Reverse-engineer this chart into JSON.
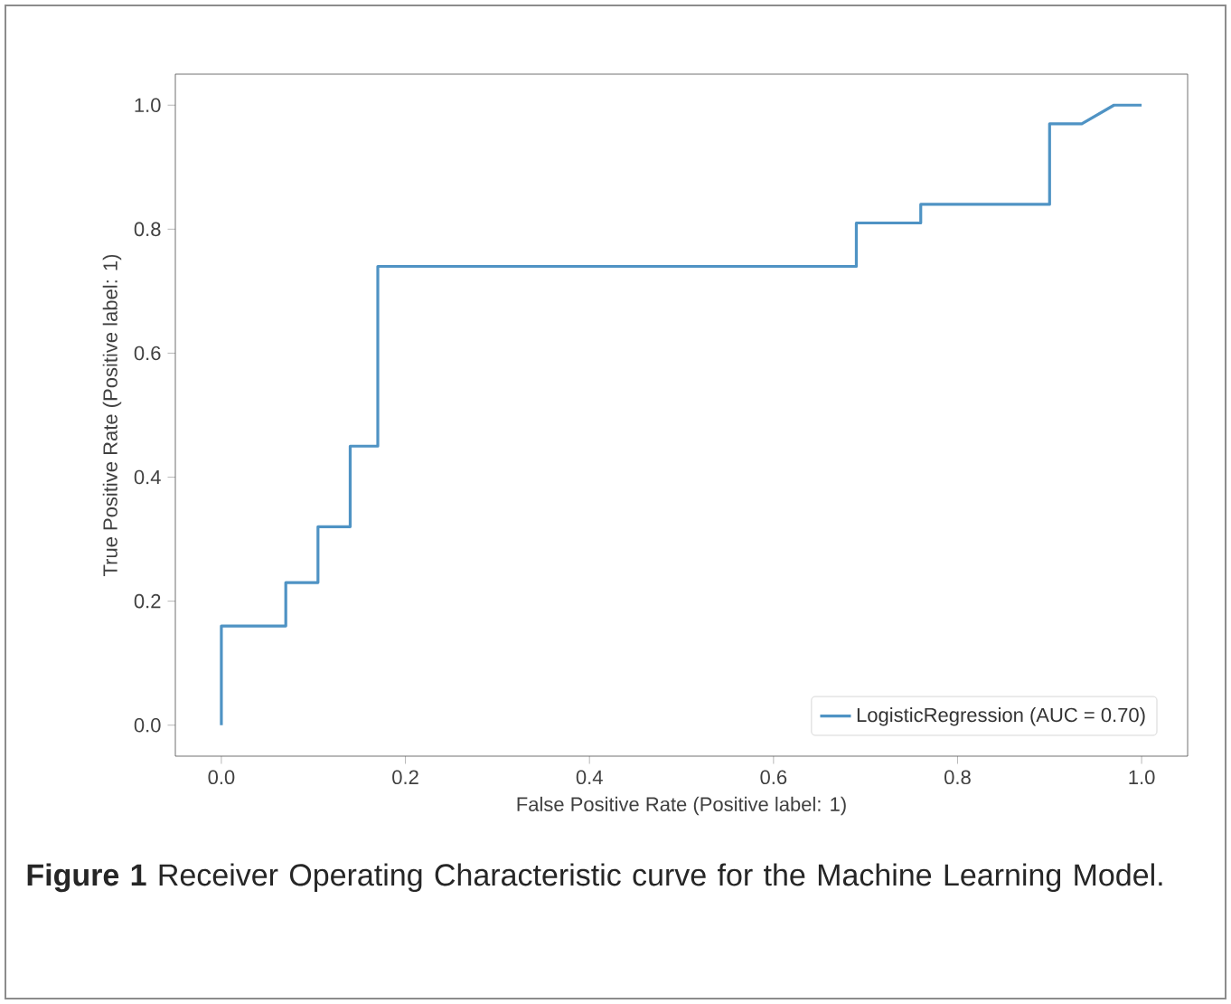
{
  "chart_data": {
    "type": "line",
    "xlabel": "False Positive Rate (Positive label: 1)",
    "ylabel": "True Positive Rate (Positive label: 1)",
    "x": [
      0,
      0,
      0.07,
      0.07,
      0.105,
      0.105,
      0.14,
      0.14,
      0.17,
      0.17,
      0.69,
      0.69,
      0.76,
      0.76,
      0.9,
      0.9,
      0.935,
      0.97,
      1.0
    ],
    "series": [
      {
        "name": "LogisticRegression (AUC = 0.70)",
        "color": "#4f93c4",
        "values": [
          0,
          0.16,
          0.16,
          0.23,
          0.23,
          0.32,
          0.32,
          0.45,
          0.45,
          0.74,
          0.74,
          0.81,
          0.81,
          0.84,
          0.84,
          0.97,
          0.97,
          1.0,
          1.0
        ]
      }
    ],
    "xlim": [
      -0.05,
      1.05
    ],
    "ylim": [
      -0.05,
      1.05
    ],
    "xticks": [
      {
        "value": 0,
        "label": "0.0"
      },
      0.2,
      0.4,
      0.6,
      0.8,
      {
        "value": 1,
        "label": "1.0"
      }
    ],
    "yticks": [
      {
        "value": 0,
        "label": "0.0"
      },
      0.2,
      0.4,
      0.6,
      0.8,
      {
        "value": 1,
        "label": "1.0"
      }
    ],
    "legend": "bottom right",
    "line_style": "solid",
    "annotations": [
      "**Figure 1**  Receiver Operating Characteristic curve for the Machine Learning Model."
    ]
  }
}
